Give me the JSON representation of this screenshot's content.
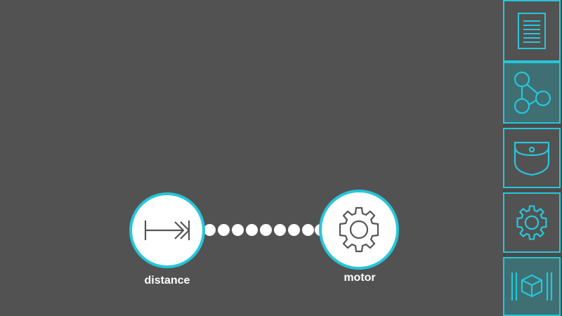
{
  "colors": {
    "background": "#525252",
    "accent": "#26c6da",
    "node_fill": "#ffffff",
    "active_tab": "#3f6f72"
  },
  "nodes": [
    {
      "id": "distance",
      "label": "distance",
      "icon": "distance-sensor-icon"
    },
    {
      "id": "motor",
      "label": "motor",
      "icon": "gear-icon"
    }
  ],
  "sidebar": {
    "items": [
      {
        "name": "document",
        "icon": "document-icon",
        "active": false
      },
      {
        "name": "graph",
        "icon": "node-graph-icon",
        "active": true
      },
      {
        "name": "pocket",
        "icon": "pocket-icon",
        "active": false
      },
      {
        "name": "settings",
        "icon": "gear-icon",
        "active": false
      },
      {
        "name": "module",
        "icon": "cube-module-icon",
        "active": false
      }
    ]
  }
}
